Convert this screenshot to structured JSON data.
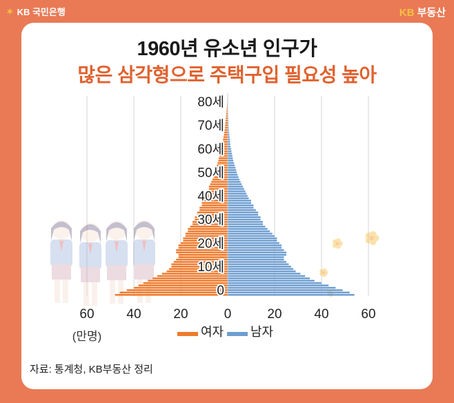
{
  "header": {
    "bank_logo": "KB 국민은행",
    "service_logo_kb": "KB",
    "service_logo_text": "부동산"
  },
  "title": {
    "line1": "1960년 유소년 인구가",
    "line2": "많은 삼각형으로 주택구입 필요성 높아"
  },
  "source": "자료: 통계청, KB부동산 정리",
  "colors": {
    "background": "#E97A55",
    "female": "#EE7A2C",
    "male": "#6E9ED0",
    "title_accent": "#E0622F"
  },
  "chart_data": {
    "type": "bar",
    "orientation": "horizontal-pyramid",
    "age_tick_labels": [
      "0",
      "10세",
      "20세",
      "30세",
      "40세",
      "50세",
      "60세",
      "70세",
      "80세"
    ],
    "x_tick_labels": [
      "60",
      "40",
      "20",
      "0",
      "20",
      "40",
      "60"
    ],
    "unit": "(만명)",
    "xlim": [
      -60,
      60
    ],
    "ylim": [
      0,
      84
    ],
    "grid": true,
    "legend_position": "bottom-center",
    "series": [
      {
        "name": "여자",
        "color": "#EE7A2C",
        "values": [
          48,
          46,
          43,
          40,
          38,
          36,
          34,
          32,
          30,
          28,
          26,
          25,
          24,
          24,
          23,
          22,
          21,
          21,
          22,
          22,
          21,
          21,
          20,
          19,
          19,
          18,
          18,
          17,
          17,
          16,
          15,
          15,
          14,
          14,
          13,
          13,
          12,
          12,
          11,
          11,
          10,
          10,
          9.5,
          9,
          8.5,
          8,
          8,
          7.5,
          7,
          6.5,
          6,
          5.8,
          5.5,
          5.2,
          5,
          4.6,
          4.3,
          4,
          3.8,
          3.5,
          3.2,
          3,
          2.8,
          2.6,
          2.4,
          2.2,
          2,
          1.8,
          1.6,
          1.5,
          1.3,
          1.2,
          1.1,
          1,
          0.9,
          0.8,
          0.7,
          0.6,
          0.5,
          0.4,
          0.3,
          0.25,
          0.2,
          0.15,
          0.1
        ]
      },
      {
        "name": "남자",
        "color": "#6E9ED0",
        "values": [
          54,
          52,
          49,
          46,
          43,
          40,
          37,
          35,
          33,
          31,
          29,
          28,
          27,
          26,
          25,
          24,
          24,
          25,
          25,
          24,
          23,
          23,
          22,
          21,
          21,
          20,
          19,
          18,
          17,
          16,
          15,
          15,
          14,
          14,
          13,
          13,
          12,
          11,
          11,
          10,
          10,
          9,
          8.5,
          8,
          7.5,
          7,
          6.5,
          6,
          5.5,
          5,
          4.6,
          4.2,
          3.9,
          3.6,
          3.3,
          3,
          2.7,
          2.4,
          2.2,
          2,
          1.8,
          1.6,
          1.4,
          1.2,
          1.1,
          1,
          0.9,
          0.8,
          0.7,
          0.6,
          0.5,
          0.45,
          0.4,
          0.35,
          0.3,
          0.25,
          0.2,
          0.18,
          0.15,
          0.12,
          0.1,
          0.08,
          0.06,
          0.05,
          0.04
        ]
      }
    ]
  }
}
